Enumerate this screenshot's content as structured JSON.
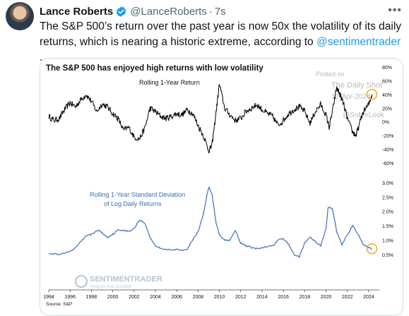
{
  "tweet": {
    "author_name": "Lance Roberts",
    "handle": "@LanceRoberts",
    "separator": "·",
    "time": "7s",
    "more_icon": "ellipsis-icon",
    "text_before": "The S&P 500’s return over the past year is now 50x the volatility of its daily returns, which is nearing a historic extreme, according to ",
    "mention": "@sentimentrader",
    "text_after": " .",
    "accent_color": "#1d9bf0"
  },
  "chart_data": [
    {
      "type": "line",
      "title": "The S&P 500 has enjoyed high returns with low volatility",
      "subtitle": "Rolling 1-Year Return",
      "watermark": [
        "Posted on",
        "The Daily Shot",
        "12-Apr-2024",
        "@SoberLook"
      ],
      "y_ticks": [
        "80%",
        "60%",
        "40%",
        "20%",
        "0%",
        "-20%",
        "-40%",
        "-60%"
      ],
      "ylim": [
        -60,
        80
      ],
      "series": [
        {
          "color": "#000000",
          "x": [
            1994,
            1994.5,
            1995,
            1995.5,
            1996,
            1996.5,
            1997,
            1997.5,
            1998,
            1998.5,
            1999,
            1999.5,
            2000,
            2000.5,
            2001,
            2001.5,
            2002,
            2002.5,
            2003,
            2003.5,
            2004,
            2004.5,
            2005,
            2005.5,
            2006,
            2006.5,
            2007,
            2007.5,
            2008,
            2008.5,
            2009,
            2009.3,
            2009.7,
            2010,
            2010.5,
            2011,
            2011.5,
            2012,
            2012.5,
            2013,
            2013.5,
            2014,
            2014.5,
            2015,
            2015.5,
            2016,
            2016.5,
            2017,
            2017.5,
            2018,
            2018.5,
            2019,
            2019.5,
            2020,
            2020.3,
            2020.6,
            2021,
            2021.3,
            2021.6,
            2022,
            2022.5,
            2022.8,
            2023,
            2023.5,
            2024,
            2024.3
          ],
          "values": [
            8,
            2,
            5,
            18,
            28,
            22,
            32,
            40,
            30,
            15,
            26,
            22,
            12,
            5,
            -12,
            -8,
            -22,
            -25,
            -10,
            20,
            15,
            8,
            5,
            8,
            12,
            10,
            18,
            12,
            -5,
            -20,
            -42,
            -35,
            15,
            55,
            20,
            10,
            2,
            5,
            15,
            20,
            25,
            18,
            12,
            8,
            -5,
            2,
            12,
            18,
            22,
            15,
            -2,
            15,
            25,
            10,
            -8,
            15,
            50,
            40,
            28,
            5,
            -15,
            -20,
            -10,
            15,
            25,
            40
          ]
        }
      ],
      "marker_color": "#f5a623"
    },
    {
      "type": "line",
      "title": "Rolling 1-Year Standard Deviation of Log Daily Returns",
      "label_lines": [
        "Rolling 1-Year Standard Deviation",
        "of Log Daily Returns"
      ],
      "y_ticks": [
        "3.0%",
        "2.5%",
        "2.0%",
        "1.5%",
        "1.0%",
        "0.5%"
      ],
      "ylim": [
        0.3,
        3.0
      ],
      "x_ticks": [
        "1994",
        "1996",
        "1998",
        "2000",
        "2002",
        "2004",
        "2006",
        "2008",
        "2010",
        "2012",
        "2014",
        "2016",
        "2018",
        "2020",
        "2022",
        "2024"
      ],
      "xlim": [
        1994,
        2025
      ],
      "source": "Source: S&P",
      "brand": "SENTIMENTRADER",
      "brand_sub": "Analysis over Emotion",
      "series": [
        {
          "color": "#3b6fb6",
          "x": [
            1994,
            1995,
            1996,
            1996.5,
            1997,
            1997.5,
            1998,
            1998.7,
            1999,
            1999.5,
            2000,
            2000.5,
            2001,
            2001.5,
            2002,
            2002.5,
            2003,
            2003.5,
            2004,
            2004.5,
            2005,
            2005.5,
            2006,
            2006.5,
            2007,
            2007.5,
            2008,
            2008.5,
            2008.8,
            2009,
            2009.3,
            2009.7,
            2010,
            2010.5,
            2011,
            2011.5,
            2012,
            2012.5,
            2013,
            2013.5,
            2014,
            2014.5,
            2015,
            2015.5,
            2016,
            2016.5,
            2017,
            2017.5,
            2018,
            2018.5,
            2019,
            2019.5,
            2020,
            2020.2,
            2020.6,
            2021,
            2021.5,
            2022,
            2022.5,
            2023,
            2023.5,
            2024,
            2024.3
          ],
          "values": [
            0.55,
            0.5,
            0.6,
            0.72,
            0.95,
            1.15,
            1.2,
            1.35,
            1.25,
            1.1,
            1.2,
            1.35,
            1.35,
            1.3,
            1.4,
            1.7,
            1.6,
            1.1,
            0.8,
            0.72,
            0.68,
            0.65,
            0.68,
            0.65,
            0.7,
            1.0,
            1.3,
            1.9,
            2.5,
            2.85,
            2.6,
            1.6,
            1.2,
            1.0,
            1.0,
            1.35,
            0.9,
            0.8,
            0.75,
            0.7,
            0.72,
            0.78,
            0.8,
            1.0,
            1.05,
            0.85,
            0.5,
            0.42,
            0.9,
            1.1,
            0.95,
            0.8,
            1.4,
            2.15,
            2.1,
            1.3,
            0.85,
            1.2,
            1.5,
            1.2,
            0.85,
            0.75,
            0.7
          ]
        }
      ],
      "marker_color": "#f5a623"
    }
  ]
}
